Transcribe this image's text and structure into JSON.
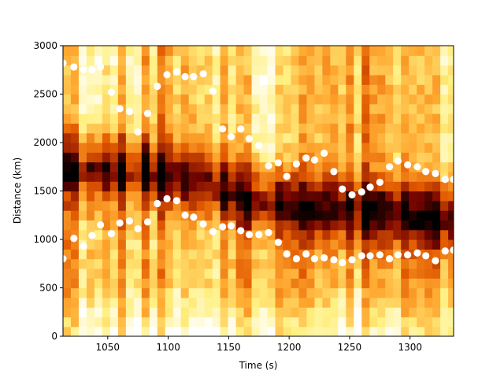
{
  "chart_data": {
    "type": "heatmap",
    "title": "",
    "xlabel": "Time (s)",
    "ylabel": "Distance (km)",
    "xlim": [
      1013,
      1336
    ],
    "ylim": [
      0,
      3000
    ],
    "x_ticks": [
      1050,
      1100,
      1150,
      1200,
      1250,
      1300
    ],
    "y_ticks": [
      0,
      500,
      1000,
      1500,
      2000,
      2500,
      3000
    ],
    "colormap": "afmhot",
    "colormap_stops": [
      "#000000",
      "#7a0500",
      "#e25a00",
      "#ffa830",
      "#fff080",
      "#ffffff"
    ],
    "heatmap": {
      "time_step_s": 6.5,
      "distance_bin_km": 100,
      "description_of_dark_band": "dark ridge of low intensity",
      "dark_band_center_km": [
        [
          1013,
          1800
        ],
        [
          1050,
          1780
        ],
        [
          1080,
          1720
        ],
        [
          1100,
          1650
        ],
        [
          1130,
          1600
        ],
        [
          1160,
          1500
        ],
        [
          1190,
          1420
        ],
        [
          1220,
          1350
        ],
        [
          1250,
          1300
        ],
        [
          1280,
          1280
        ],
        [
          1310,
          1280
        ],
        [
          1336,
          1300
        ]
      ],
      "bright_floor_km": 600
    },
    "series": [
      {
        "marker": "circle",
        "color": "#ffffff",
        "points": [
          [
            1013,
            2820
          ],
          [
            1022,
            2780
          ],
          [
            1030,
            2750
          ],
          [
            1037,
            2750
          ],
          [
            1044,
            2780
          ],
          [
            1053,
            2520
          ],
          [
            1060,
            2350
          ],
          [
            1068,
            2320
          ],
          [
            1075,
            2110
          ],
          [
            1083,
            2300
          ],
          [
            1091,
            2580
          ],
          [
            1099,
            2700
          ],
          [
            1107,
            2730
          ],
          [
            1114,
            2680
          ],
          [
            1121,
            2680
          ],
          [
            1129,
            2710
          ],
          [
            1137,
            2530
          ],
          [
            1145,
            2140
          ],
          [
            1152,
            2060
          ],
          [
            1160,
            2140
          ],
          [
            1167,
            2040
          ],
          [
            1175,
            1970
          ],
          [
            1183,
            1760
          ],
          [
            1191,
            1790
          ],
          [
            1198,
            1650
          ],
          [
            1206,
            1780
          ],
          [
            1214,
            1840
          ],
          [
            1221,
            1820
          ],
          [
            1229,
            1890
          ],
          [
            1237,
            1700
          ],
          [
            1244,
            1520
          ],
          [
            1252,
            1460
          ],
          [
            1260,
            1490
          ],
          [
            1267,
            1540
          ],
          [
            1275,
            1590
          ],
          [
            1283,
            1750
          ],
          [
            1290,
            1810
          ],
          [
            1298,
            1770
          ],
          [
            1306,
            1750
          ],
          [
            1313,
            1700
          ],
          [
            1321,
            1680
          ],
          [
            1329,
            1620
          ],
          [
            1336,
            1620
          ]
        ]
      },
      {
        "marker": "circle",
        "color": "#ffffff",
        "points": [
          [
            1013,
            800
          ],
          [
            1022,
            1010
          ],
          [
            1030,
            930
          ],
          [
            1037,
            1040
          ],
          [
            1044,
            1150
          ],
          [
            1053,
            1060
          ],
          [
            1060,
            1170
          ],
          [
            1068,
            1190
          ],
          [
            1075,
            1110
          ],
          [
            1083,
            1180
          ],
          [
            1091,
            1370
          ],
          [
            1099,
            1420
          ],
          [
            1107,
            1400
          ],
          [
            1114,
            1250
          ],
          [
            1121,
            1230
          ],
          [
            1129,
            1160
          ],
          [
            1137,
            1080
          ],
          [
            1145,
            1130
          ],
          [
            1152,
            1140
          ],
          [
            1160,
            1090
          ],
          [
            1167,
            1050
          ],
          [
            1175,
            1050
          ],
          [
            1183,
            1070
          ],
          [
            1191,
            970
          ],
          [
            1198,
            850
          ],
          [
            1206,
            800
          ],
          [
            1214,
            850
          ],
          [
            1221,
            800
          ],
          [
            1229,
            810
          ],
          [
            1237,
            790
          ],
          [
            1244,
            760
          ],
          [
            1252,
            790
          ],
          [
            1260,
            830
          ],
          [
            1267,
            830
          ],
          [
            1275,
            840
          ],
          [
            1283,
            800
          ],
          [
            1290,
            840
          ],
          [
            1298,
            840
          ],
          [
            1306,
            860
          ],
          [
            1313,
            830
          ],
          [
            1321,
            780
          ],
          [
            1329,
            880
          ],
          [
            1336,
            890
          ]
        ]
      }
    ]
  }
}
